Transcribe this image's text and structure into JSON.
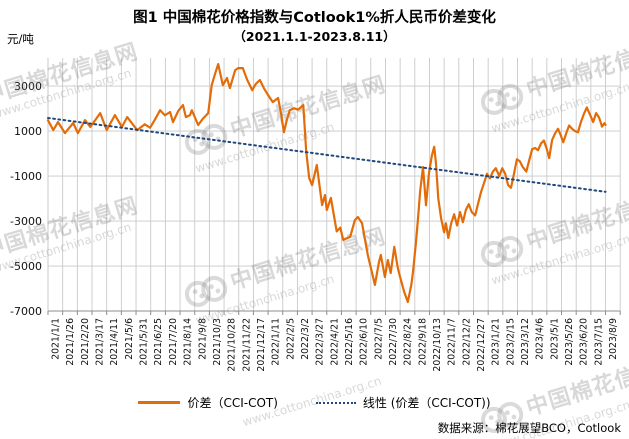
{
  "header": {
    "title": "图1 中国棉花价格指数与Cotlook1%折人民币价差变化",
    "subtitle": "（2021.1.1-2023.8.11）",
    "y_unit": "元/吨"
  },
  "legend": {
    "series1_label": "价差（CCI-COT)",
    "series2_label": "线性 (价差（CCI-COT))"
  },
  "source_note": "数据来源：棉花展望BCO，Cotlook",
  "watermark": {
    "name": "中国棉花信息网",
    "url": "www.cottonchina.org.cn"
  },
  "colors": {
    "price_line": "#E36C09",
    "trend_line": "#1F497D",
    "gridline": "#c9c9c9",
    "axis": "#8c8c8c",
    "text": "#000000"
  },
  "chart_data": {
    "type": "line",
    "title": "图1 中国棉花价格指数与Cotlook1%折人民币价差变化",
    "subtitle": "（2021.1.1-2023.8.11）",
    "ylabel": "元/吨",
    "ylim": [
      -7000,
      4250
    ],
    "y_ticks": [
      3000,
      1000,
      -1000,
      -3000,
      -5000,
      -7000
    ],
    "grid": true,
    "legend_position": "bottom",
    "x_tick_labels": [
      "2021/1/1",
      "2021/1/26",
      "2021/2/20",
      "2021/3/17",
      "2021/4/11",
      "2021/5/6",
      "2021/5/31",
      "2021/6/25",
      "2021/7/20",
      "2021/8/14",
      "2021/9/8",
      "2021/10/3",
      "2021/10/28",
      "2021/11/22",
      "2021/12/17",
      "2022/1/11",
      "2022/2/5",
      "2022/3/2",
      "2022/3/27",
      "2022/4/21",
      "2022/5/16",
      "2022/6/10",
      "2022/7/5",
      "2022/7/30",
      "2022/8/24",
      "2022/9/18",
      "2022/10/13",
      "2022/11/7",
      "2022/12/2",
      "2022/12/27",
      "2023/1/21",
      "2023/2/15",
      "2023/3/12",
      "2023/4/6",
      "2023/5/1",
      "2023/5/26",
      "2023/6/20",
      "2023/7/15",
      "2023/8/9"
    ],
    "x_span_days": 950,
    "series": [
      {
        "name": "价差（CCI-COT)",
        "style": "solid",
        "color": "#E36C09",
        "points_day_value": [
          [
            0,
            1480
          ],
          [
            9,
            1045
          ],
          [
            17,
            1400
          ],
          [
            29,
            910
          ],
          [
            43,
            1360
          ],
          [
            51,
            910
          ],
          [
            63,
            1490
          ],
          [
            72,
            1180
          ],
          [
            89,
            1800
          ],
          [
            100,
            1045
          ],
          [
            114,
            1710
          ],
          [
            126,
            1180
          ],
          [
            135,
            1620
          ],
          [
            152,
            1045
          ],
          [
            165,
            1300
          ],
          [
            174,
            1150
          ],
          [
            182,
            1500
          ],
          [
            191,
            1930
          ],
          [
            199,
            1700
          ],
          [
            208,
            1850
          ],
          [
            213,
            1400
          ],
          [
            222,
            1900
          ],
          [
            230,
            2155
          ],
          [
            235,
            1620
          ],
          [
            242,
            1710
          ],
          [
            245,
            1930
          ],
          [
            256,
            1270
          ],
          [
            264,
            1550
          ],
          [
            273,
            1800
          ],
          [
            279,
            3040
          ],
          [
            285,
            3580
          ],
          [
            290,
            3980
          ],
          [
            298,
            3040
          ],
          [
            305,
            3360
          ],
          [
            310,
            2910
          ],
          [
            319,
            3710
          ],
          [
            324,
            3800
          ],
          [
            332,
            3800
          ],
          [
            339,
            3300
          ],
          [
            348,
            2820
          ],
          [
            354,
            3100
          ],
          [
            361,
            3270
          ],
          [
            368,
            2900
          ],
          [
            375,
            2600
          ],
          [
            383,
            2290
          ],
          [
            392,
            2470
          ],
          [
            397,
            1800
          ],
          [
            402,
            950
          ],
          [
            407,
            1500
          ],
          [
            412,
            1930
          ],
          [
            419,
            2020
          ],
          [
            426,
            1950
          ],
          [
            435,
            2155
          ],
          [
            440,
            100
          ],
          [
            445,
            -1090
          ],
          [
            450,
            -1400
          ],
          [
            458,
            -510
          ],
          [
            467,
            -2290
          ],
          [
            472,
            -1840
          ],
          [
            475,
            -2510
          ],
          [
            482,
            -1970
          ],
          [
            492,
            -3460
          ],
          [
            498,
            -3290
          ],
          [
            503,
            -3840
          ],
          [
            510,
            -3760
          ],
          [
            515,
            -3700
          ],
          [
            523,
            -2960
          ],
          [
            528,
            -2820
          ],
          [
            535,
            -3090
          ],
          [
            545,
            -4510
          ],
          [
            549,
            -4960
          ],
          [
            557,
            -5840
          ],
          [
            564,
            -4820
          ],
          [
            567,
            -4510
          ],
          [
            574,
            -5490
          ],
          [
            579,
            -4730
          ],
          [
            584,
            -5310
          ],
          [
            590,
            -4150
          ],
          [
            596,
            -5090
          ],
          [
            600,
            -5490
          ],
          [
            607,
            -6150
          ],
          [
            613,
            -6600
          ],
          [
            619,
            -5840
          ],
          [
            622,
            -5270
          ],
          [
            627,
            -3930
          ],
          [
            631,
            -2730
          ],
          [
            634,
            -1700
          ],
          [
            639,
            -600
          ],
          [
            644,
            -2300
          ],
          [
            649,
            -900
          ],
          [
            654,
            -100
          ],
          [
            658,
            300
          ],
          [
            661,
            -400
          ],
          [
            665,
            -2000
          ],
          [
            670,
            -2900
          ],
          [
            675,
            -3500
          ],
          [
            678,
            -3100
          ],
          [
            682,
            -3750
          ],
          [
            687,
            -3100
          ],
          [
            692,
            -2700
          ],
          [
            697,
            -3200
          ],
          [
            702,
            -2600
          ],
          [
            707,
            -3050
          ],
          [
            712,
            -2500
          ],
          [
            717,
            -2250
          ],
          [
            722,
            -2600
          ],
          [
            728,
            -2750
          ],
          [
            733,
            -2200
          ],
          [
            738,
            -1700
          ],
          [
            743,
            -1300
          ],
          [
            748,
            -900
          ],
          [
            753,
            -1100
          ],
          [
            758,
            -800
          ],
          [
            763,
            -650
          ],
          [
            769,
            -1000
          ],
          [
            774,
            -650
          ],
          [
            779,
            -900
          ],
          [
            784,
            -1400
          ],
          [
            789,
            -1520
          ],
          [
            794,
            -900
          ],
          [
            799,
            -250
          ],
          [
            804,
            -350
          ],
          [
            809,
            -600
          ],
          [
            815,
            -800
          ],
          [
            820,
            -300
          ],
          [
            825,
            200
          ],
          [
            830,
            250
          ],
          [
            835,
            150
          ],
          [
            840,
            450
          ],
          [
            845,
            580
          ],
          [
            850,
            200
          ],
          [
            854,
            -200
          ],
          [
            859,
            600
          ],
          [
            864,
            900
          ],
          [
            869,
            1100
          ],
          [
            874,
            800
          ],
          [
            878,
            500
          ],
          [
            883,
            900
          ],
          [
            888,
            1250
          ],
          [
            893,
            1100
          ],
          [
            898,
            1000
          ],
          [
            903,
            950
          ],
          [
            908,
            1400
          ],
          [
            913,
            1750
          ],
          [
            918,
            2050
          ],
          [
            924,
            1700
          ],
          [
            929,
            1400
          ],
          [
            934,
            1800
          ],
          [
            939,
            1600
          ],
          [
            944,
            1200
          ],
          [
            948,
            1350
          ],
          [
            950,
            1280
          ]
        ]
      },
      {
        "name": "线性 (价差（CCI-COT))",
        "style": "dotted",
        "color": "#1F497D",
        "points_day_value": [
          [
            0,
            1580
          ],
          [
            950,
            -1700
          ]
        ]
      }
    ]
  }
}
